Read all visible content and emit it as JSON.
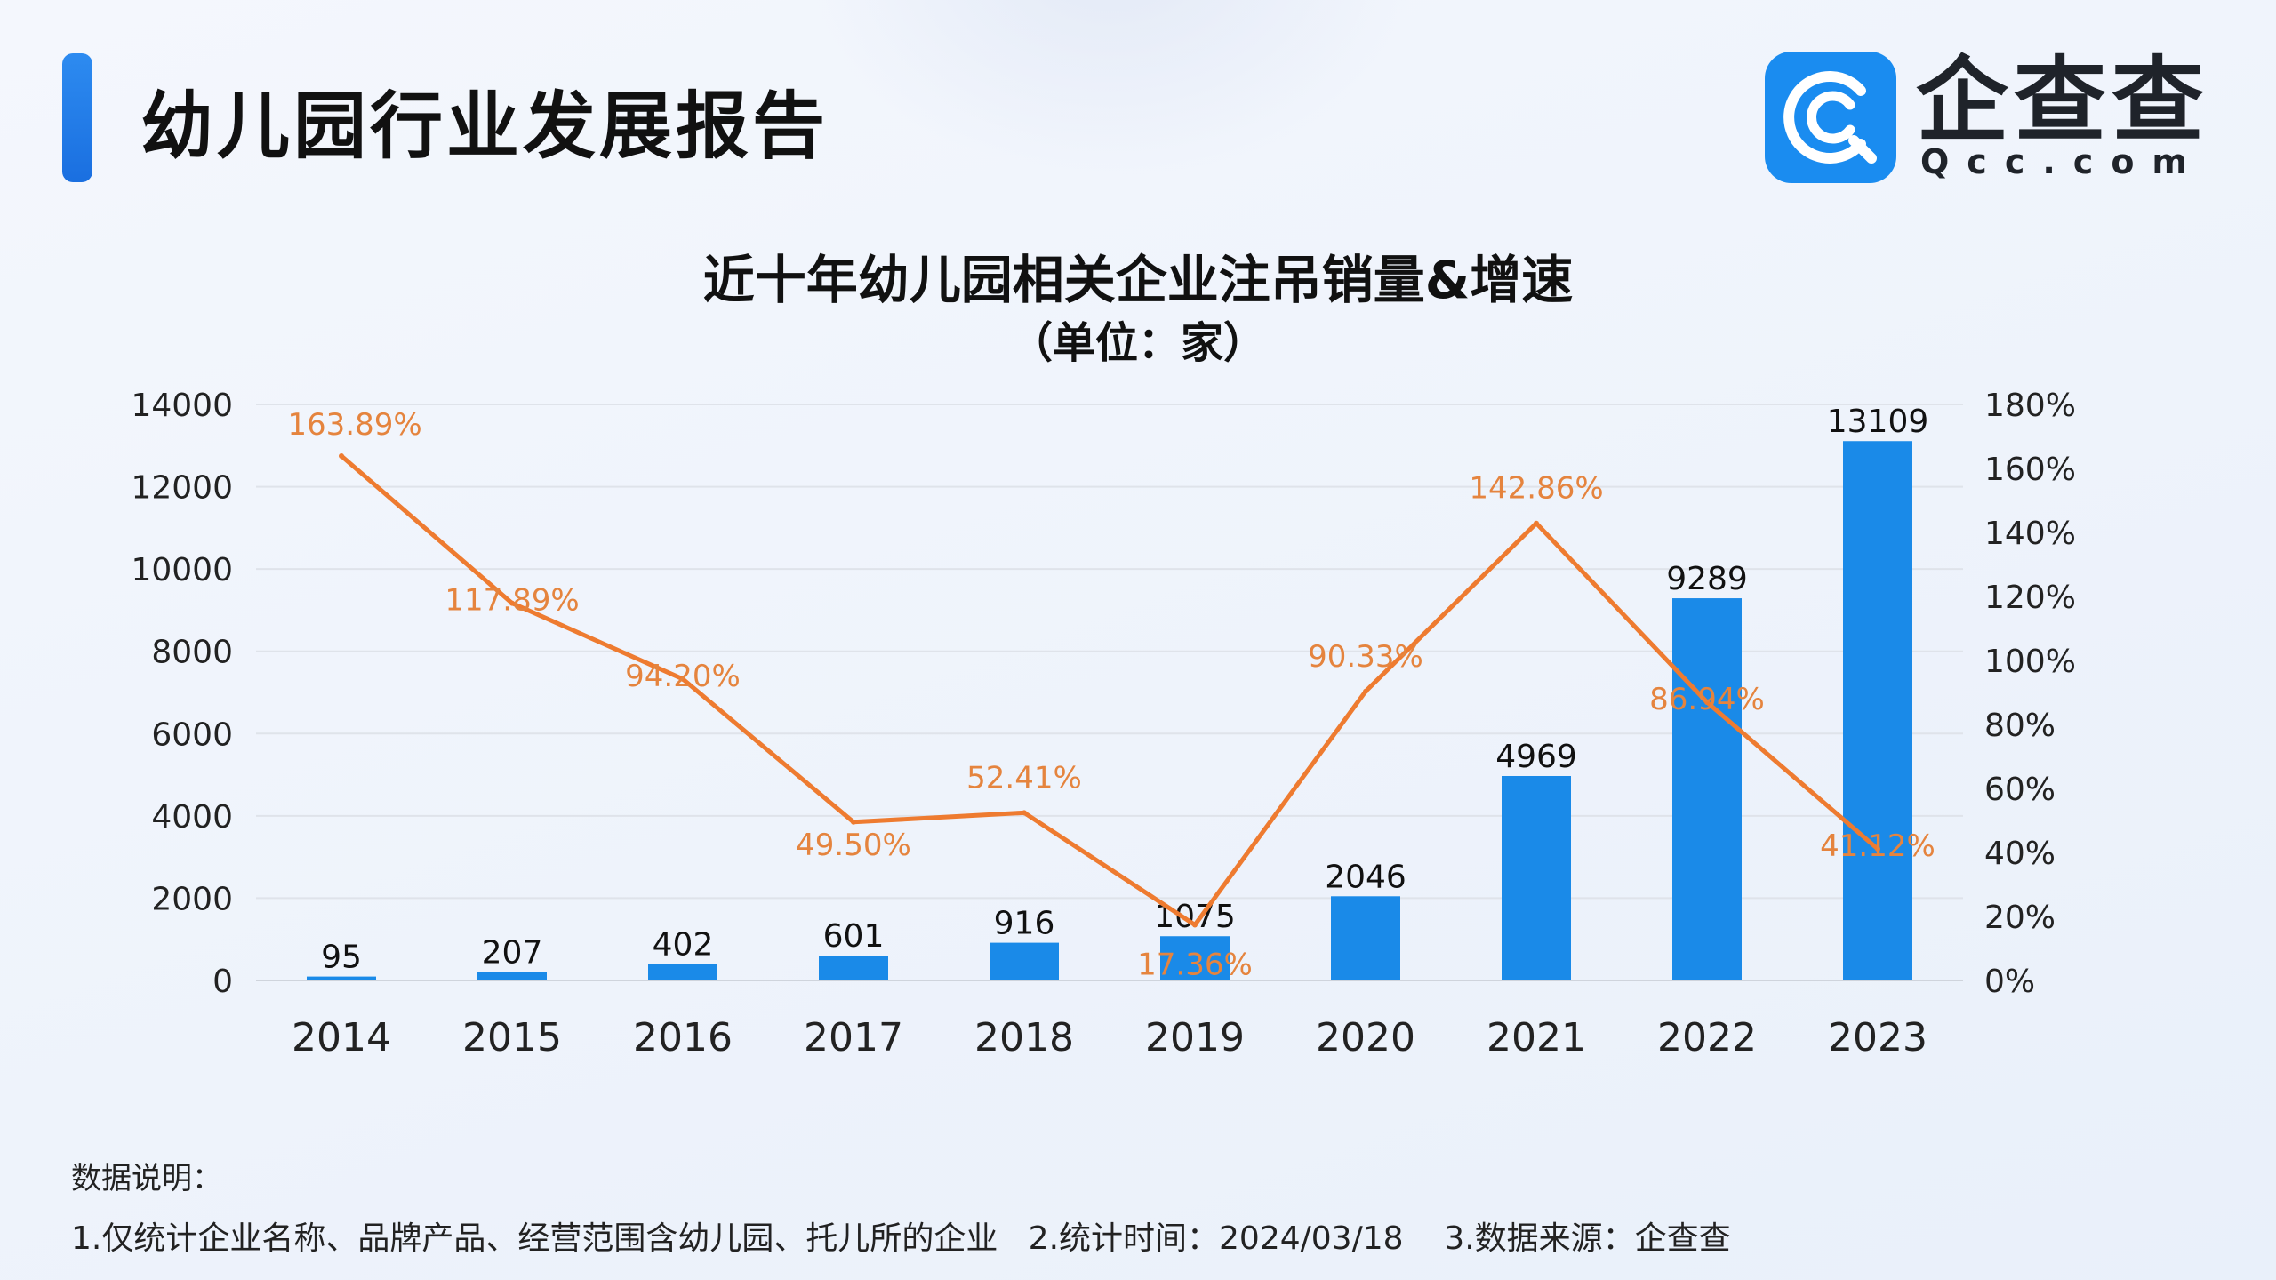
{
  "header": {
    "title": "幼儿园行业发展报告",
    "logo_text": "企查查",
    "logo_sub": "Qcc.com"
  },
  "chart_data": {
    "type": "bar",
    "title": "近十年幼儿园相关企业注吊销量&增速",
    "subtitle": "（单位：家）",
    "categories": [
      "2014",
      "2015",
      "2016",
      "2017",
      "2018",
      "2019",
      "2020",
      "2021",
      "2022",
      "2023"
    ],
    "series": [
      {
        "values": [
          95,
          207,
          402,
          601,
          916,
          1075,
          2046,
          4969,
          9289,
          13109
        ],
        "color": "#1a8ae8",
        "type": "bar",
        "axis": "left"
      },
      {
        "values": [
          163.89,
          117.89,
          94.2,
          49.5,
          52.41,
          17.36,
          90.33,
          142.86,
          86.94,
          41.12
        ],
        "color": "#ee7b30",
        "type": "line",
        "axis": "right"
      }
    ],
    "bar_labels": [
      "95",
      "207",
      "402",
      "601",
      "916",
      "1075",
      "2046",
      "4969",
      "9289",
      "13109"
    ],
    "line_labels": [
      "163.89%",
      "117.89%",
      "94.20%",
      "49.50%",
      "52.41%",
      "17.36%",
      "90.33%",
      "142.86%",
      "86.94%",
      "41.12%"
    ],
    "y_left": {
      "ticks": [
        "0",
        "2000",
        "4000",
        "6000",
        "8000",
        "10000",
        "12000",
        "14000"
      ],
      "ylim": [
        0,
        14000
      ]
    },
    "y_right": {
      "ticks": [
        "0%",
        "20%",
        "40%",
        "60%",
        "80%",
        "100%",
        "120%",
        "140%",
        "160%",
        "180%"
      ],
      "ylim": [
        0,
        180
      ]
    },
    "grid": true
  },
  "notes": {
    "title": "数据说明：",
    "line": "1.仅统计企业名称、品牌产品、经营范围含幼儿园、托儿所的企业   2.统计时间：2024/03/18    3.数据来源：企查查"
  }
}
